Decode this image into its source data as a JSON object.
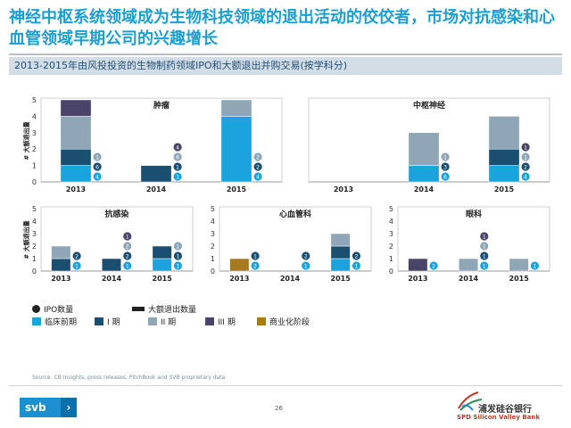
{
  "title": "神经中枢系统领域成为生物科技领域的退出活动的佼佼者，市场对抗感染和心血管领域早期公司的兴趣增长",
  "subtitle": "2013-2015年由风投投资的生物制药领域IPO和大额退出并购交易(按学科分)",
  "ylabel": "# 大额退出量",
  "legend": {
    "ipo": "IPO数量",
    "ma": "大额退出数量",
    "preclinical": "临床前期",
    "phase1": "I 期",
    "phase2": "II 期",
    "phase3": "III 期",
    "commercial": "商业化阶段"
  },
  "colors": {
    "preclinical": "#1ba3dd",
    "phase1": "#1b4f72",
    "phase2": "#8fa6b7",
    "phase3": "#4a4468",
    "commercial": "#a87a1e"
  },
  "source": "Source: CB Insights, press releases, PitchBook and SVB proprietary data",
  "page_number": "26",
  "logo": {
    "svb": "svb",
    "bank_cn": "浦发硅谷银行",
    "bank_en": "SPD Silicon Valley Bank"
  },
  "chart_data": [
    {
      "type": "bar",
      "title": "肿瘤",
      "categories": [
        "2013",
        "2014",
        "2015"
      ],
      "ylim": [
        0,
        5
      ],
      "series": [
        {
          "name": "临床前期",
          "values": [
            1,
            0,
            4
          ]
        },
        {
          "name": "I 期",
          "values": [
            1,
            1,
            0
          ]
        },
        {
          "name": "II 期",
          "values": [
            2,
            0,
            1
          ]
        },
        {
          "name": "III 期",
          "values": [
            1,
            0,
            0
          ]
        },
        {
          "name": "商业化阶段",
          "values": [
            0,
            0,
            0
          ]
        }
      ],
      "ipo_badges": [
        [
          "4",
          "6",
          "1"
        ],
        [
          "1",
          "1",
          "6",
          "4"
        ],
        [
          "4",
          "2",
          "2"
        ]
      ]
    },
    {
      "type": "bar",
      "title": "中枢神经",
      "categories": [
        "2013",
        "2014",
        "2015"
      ],
      "ylim": [
        0,
        5
      ],
      "series": [
        {
          "name": "临床前期",
          "values": [
            0,
            1,
            1
          ]
        },
        {
          "name": "I 期",
          "values": [
            0,
            0,
            1
          ]
        },
        {
          "name": "II 期",
          "values": [
            0,
            2,
            2
          ]
        },
        {
          "name": "III 期",
          "values": [
            0,
            0,
            0
          ]
        },
        {
          "name": "商业化阶段",
          "values": [
            0,
            0,
            0
          ]
        }
      ],
      "ipo_badges": [
        [],
        [
          "6",
          "3",
          "1"
        ],
        [
          "4",
          "2",
          "1",
          "1"
        ]
      ]
    },
    {
      "type": "bar",
      "title": "抗感染",
      "categories": [
        "2013",
        "2014",
        "2015"
      ],
      "ylim": [
        0,
        5
      ],
      "series": [
        {
          "name": "临床前期",
          "values": [
            0,
            0,
            1
          ]
        },
        {
          "name": "I 期",
          "values": [
            1,
            1,
            1
          ]
        },
        {
          "name": "II 期",
          "values": [
            1,
            0,
            0
          ]
        },
        {
          "name": "III 期",
          "values": [
            0,
            0,
            0
          ]
        },
        {
          "name": "商业化阶段",
          "values": [
            0,
            0,
            0
          ]
        }
      ],
      "ipo_badges": [
        [
          "1",
          "2"
        ],
        [
          "1",
          "2",
          "2",
          "1"
        ],
        [
          "1",
          "1",
          "1"
        ]
      ]
    },
    {
      "type": "bar",
      "title": "心血管科",
      "categories": [
        "2013",
        "2014",
        "2015"
      ],
      "ylim": [
        0,
        5
      ],
      "series": [
        {
          "name": "临床前期",
          "values": [
            0,
            0,
            1
          ]
        },
        {
          "name": "I 期",
          "values": [
            0,
            0,
            1
          ]
        },
        {
          "name": "II 期",
          "values": [
            0,
            0,
            1
          ]
        },
        {
          "name": "III 期",
          "values": [
            0,
            0,
            0
          ]
        },
        {
          "name": "商业化阶段",
          "values": [
            1,
            0,
            0
          ]
        }
      ],
      "ipo_badges": [
        [
          "2",
          "1"
        ],
        [
          "1",
          "2"
        ],
        [
          "1",
          "2"
        ]
      ]
    },
    {
      "type": "bar",
      "title": "眼科",
      "categories": [
        "2013",
        "2014",
        "2015"
      ],
      "ylim": [
        0,
        5
      ],
      "series": [
        {
          "name": "临床前期",
          "values": [
            0,
            0,
            0
          ]
        },
        {
          "name": "I 期",
          "values": [
            0,
            0,
            0
          ]
        },
        {
          "name": "II 期",
          "values": [
            0,
            1,
            1
          ]
        },
        {
          "name": "III 期",
          "values": [
            1,
            0,
            0
          ]
        },
        {
          "name": "商业化阶段",
          "values": [
            0,
            0,
            0
          ]
        }
      ],
      "ipo_badges": [
        [
          "2"
        ],
        [
          "1",
          "1",
          "1",
          "1"
        ],
        [
          "1"
        ]
      ]
    }
  ]
}
